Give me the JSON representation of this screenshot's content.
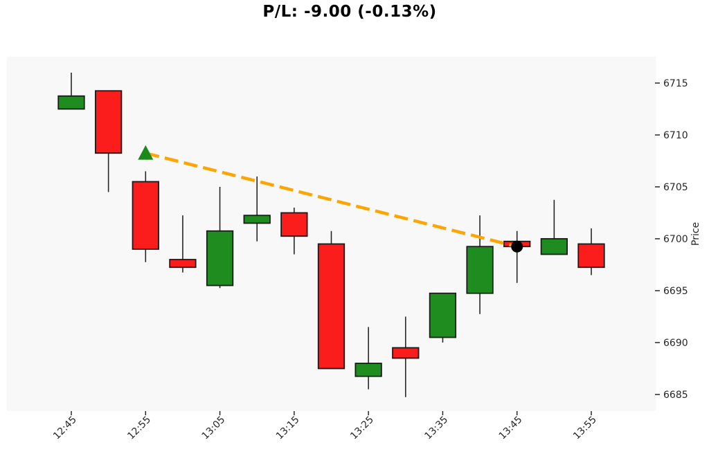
{
  "title": "P/L: -9.00 (-0.13%)",
  "pl": {
    "value": -9.0,
    "percent": -0.13
  },
  "chart_data": {
    "type": "candlestick",
    "title": "P/L: -9.00 (-0.13%)",
    "xlabel": "",
    "ylabel": "Price",
    "y_axis_side": "right",
    "grid": false,
    "yticks": [
      6685,
      6690,
      6695,
      6700,
      6705,
      6710,
      6715
    ],
    "ylim": [
      6683.5,
      6717.5
    ],
    "xtick_times": [
      "12:45",
      "12:55",
      "13:05",
      "13:15",
      "13:25",
      "13:35",
      "13:45",
      "13:55"
    ],
    "candles": [
      {
        "time": "12:45",
        "open": 6712.5,
        "high": 6716.0,
        "low": 6712.5,
        "close": 6713.75
      },
      {
        "time": "12:50",
        "open": 6714.25,
        "high": 6714.25,
        "low": 6704.5,
        "close": 6708.25
      },
      {
        "time": "12:55",
        "open": 6705.5,
        "high": 6706.5,
        "low": 6697.75,
        "close": 6699.0
      },
      {
        "time": "13:00",
        "open": 6698.0,
        "high": 6702.25,
        "low": 6696.75,
        "close": 6697.25
      },
      {
        "time": "13:05",
        "open": 6695.5,
        "high": 6705.0,
        "low": 6695.25,
        "close": 6700.75
      },
      {
        "time": "13:10",
        "open": 6701.5,
        "high": 6706.0,
        "low": 6699.75,
        "close": 6702.25
      },
      {
        "time": "13:15",
        "open": 6702.5,
        "high": 6703.0,
        "low": 6698.5,
        "close": 6700.25
      },
      {
        "time": "13:20",
        "open": 6699.5,
        "high": 6700.75,
        "low": 6687.5,
        "close": 6687.5
      },
      {
        "time": "13:25",
        "open": 6686.75,
        "high": 6691.5,
        "low": 6685.5,
        "close": 6688.0
      },
      {
        "time": "13:30",
        "open": 6689.5,
        "high": 6692.5,
        "low": 6684.75,
        "close": 6688.5
      },
      {
        "time": "13:35",
        "open": 6690.5,
        "high": 6694.75,
        "low": 6690.0,
        "close": 6694.75
      },
      {
        "time": "13:40",
        "open": 6694.75,
        "high": 6702.25,
        "low": 6692.75,
        "close": 6699.25
      },
      {
        "time": "13:45",
        "open": 6699.75,
        "high": 6700.75,
        "low": 6695.75,
        "close": 6699.25
      },
      {
        "time": "13:50",
        "open": 6698.5,
        "high": 6703.75,
        "low": 6698.5,
        "close": 6700.0
      },
      {
        "time": "13:55",
        "open": 6699.5,
        "high": 6701.0,
        "low": 6696.5,
        "close": 6697.25
      }
    ],
    "trade": {
      "entry": {
        "time": "12:55",
        "price": 6708.25,
        "marker": "triangle-up"
      },
      "exit": {
        "time": "13:45",
        "price": 6699.25,
        "marker": "circle"
      },
      "line_style": "dashed"
    },
    "colors": {
      "up": "#1e8c1e",
      "down": "#fb1c1c",
      "edge": "#1a1a1a",
      "wick": "#262626",
      "trade_line": "#ffa500",
      "entry_marker": "#1a8a1a",
      "exit_marker": "#000000",
      "plot_bg": "#f8f8f8",
      "figure_bg": "#ffffff",
      "text": "#262626"
    }
  }
}
